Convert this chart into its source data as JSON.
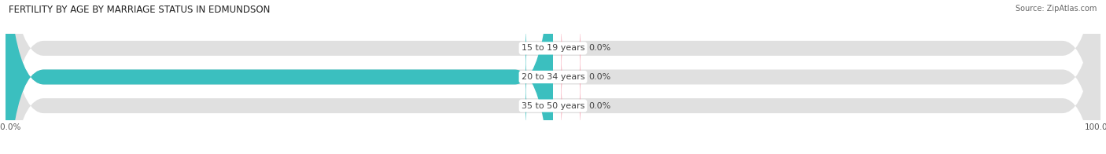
{
  "title": "FERTILITY BY AGE BY MARRIAGE STATUS IN EDMUNDSON",
  "source": "Source: ZipAtlas.com",
  "rows": [
    {
      "label": "15 to 19 years",
      "married": 0.0,
      "unmarried": 0.0
    },
    {
      "label": "20 to 34 years",
      "married": 100.0,
      "unmarried": 0.0
    },
    {
      "label": "35 to 50 years",
      "married": 0.0,
      "unmarried": 0.0
    }
  ],
  "married_color": "#3bbfbf",
  "unmarried_color": "#f5a0b0",
  "bar_bg_color": "#e0e0e0",
  "figsize": [
    14.06,
    1.96
  ],
  "dpi": 100,
  "title_fontsize": 8.5,
  "label_fontsize": 8,
  "source_fontsize": 7,
  "legend_fontsize": 8,
  "tick_fontsize": 7.5,
  "center_label_color": "#444444",
  "value_label_color": "#444444"
}
